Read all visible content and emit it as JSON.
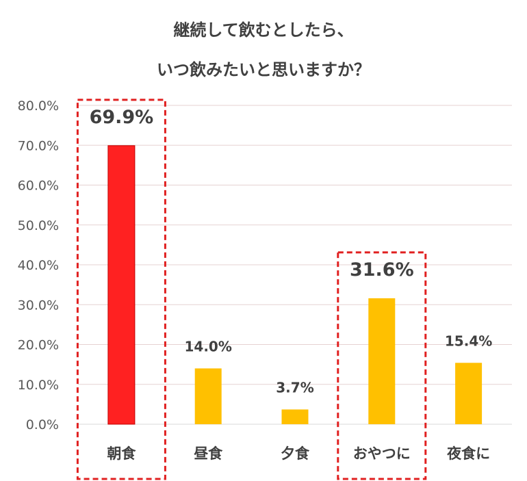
{
  "chart_data": {
    "type": "bar",
    "title_lines": [
      "継続して飲むとしたら、",
      "いつ飲みたいと思いますか？"
    ],
    "categories": [
      "朝食",
      "昼食",
      "夕食",
      "おやつに",
      "夜食に"
    ],
    "values": [
      69.9,
      14.0,
      3.7,
      31.6,
      15.4
    ],
    "value_labels": [
      "69.9%",
      "14.0%",
      "3.7%",
      "31.6%",
      "15.4%"
    ],
    "highlighted": [
      true,
      false,
      false,
      true,
      false
    ],
    "bar_colors": [
      "#ff2121",
      "#ffc000",
      "#ffc000",
      "#ffc000",
      "#ffc000"
    ],
    "ylim": [
      0,
      80
    ],
    "yticks": [
      0,
      10,
      20,
      30,
      40,
      50,
      60,
      70,
      80
    ],
    "ytick_labels": [
      "0.0%",
      "10.0%",
      "20.0%",
      "30.0%",
      "40.0%",
      "50.0%",
      "60.0%",
      "70.0%",
      "80.0%"
    ],
    "grid": true,
    "xlabel": "",
    "ylabel": ""
  },
  "colors": {
    "highlight_label": "#e8242d",
    "highlight_box": "#e02020",
    "gridline": "#e6d2d2",
    "normal_label": "#404040"
  }
}
